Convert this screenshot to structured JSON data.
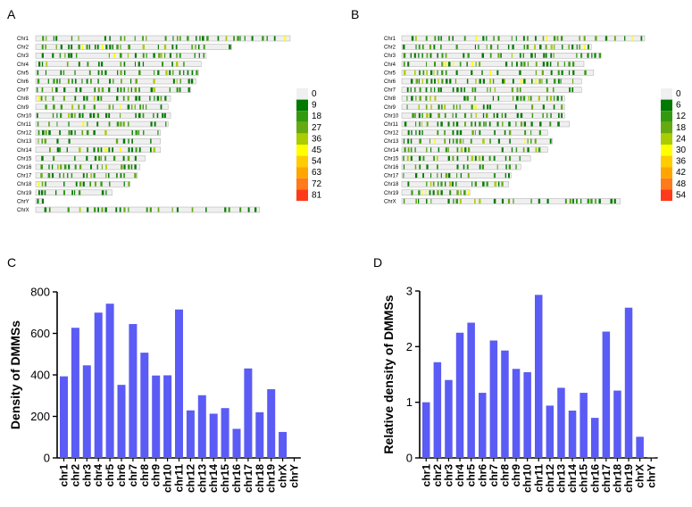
{
  "panel_labels": {
    "a": "A",
    "b": "B",
    "c": "C",
    "d": "D"
  },
  "colors": {
    "bar": "#5b5bf5",
    "chrom_bg": "#efefef",
    "chrom_border": "#9a9a9a",
    "scale_a": [
      "#f0f0f0",
      "#007a00",
      "#339a10",
      "#66aa10",
      "#aacc00",
      "#ffff00",
      "#ffcc00",
      "#ffa500",
      "#ff7a1a",
      "#ff3a1a"
    ],
    "scale_b": [
      "#f0f0f0",
      "#007a00",
      "#339a10",
      "#66aa10",
      "#aacc00",
      "#ffff00",
      "#ffcc00",
      "#ffa500",
      "#ff7a1a",
      "#ff3a1a"
    ]
  },
  "ideogram_a": {
    "chromosomes": [
      "Chr1",
      "Chr2",
      "Chr3",
      "Chr4",
      "Chr5",
      "Chr6",
      "Chr7",
      "Chr8",
      "Chr9",
      "Chr10",
      "Chr11",
      "Chr12",
      "Chr13",
      "Chr14",
      "Chr15",
      "Chr16",
      "Chr17",
      "Chr18",
      "Chr19",
      "ChrY",
      "ChrX"
    ],
    "relative_lengths": [
      1.0,
      0.77,
      0.67,
      0.65,
      0.64,
      0.63,
      0.61,
      0.53,
      0.52,
      0.53,
      0.52,
      0.49,
      0.49,
      0.49,
      0.43,
      0.41,
      0.4,
      0.37,
      0.3,
      0.03,
      0.88
    ],
    "legend": [
      "0",
      "9",
      "18",
      "27",
      "36",
      "45",
      "54",
      "63",
      "72",
      "81"
    ]
  },
  "ideogram_b": {
    "chromosomes": [
      "Chr1",
      "Chr2",
      "Chr3",
      "Chr4",
      "Chr5",
      "Chr6",
      "Chr7",
      "Chr8",
      "Chr9",
      "Chr10",
      "Chr11",
      "Chr12",
      "Chr13",
      "Chr14",
      "Chr15",
      "Chr16",
      "Chr17",
      "Chr18",
      "Chr19",
      "ChrX"
    ],
    "relative_lengths": [
      1.0,
      0.78,
      0.82,
      0.75,
      0.79,
      0.74,
      0.74,
      0.67,
      0.67,
      0.67,
      0.69,
      0.6,
      0.62,
      0.6,
      0.53,
      0.49,
      0.45,
      0.44,
      0.28,
      0.9
    ],
    "legend": [
      "0",
      "6",
      "12",
      "18",
      "24",
      "30",
      "36",
      "42",
      "48",
      "54"
    ]
  },
  "chart_data": [
    {
      "type": "bar",
      "categories": [
        "chr1",
        "chr2",
        "chr3",
        "chr4",
        "chr5",
        "chr6",
        "chr7",
        "chr8",
        "chr9",
        "chr10",
        "chr11",
        "chr12",
        "chr13",
        "chr14",
        "chr15",
        "chr16",
        "chr17",
        "chr18",
        "chr19",
        "chrX",
        "chrY"
      ],
      "values": [
        393,
        627,
        446,
        700,
        743,
        352,
        645,
        507,
        397,
        398,
        715,
        229,
        302,
        213,
        240,
        140,
        431,
        220,
        331,
        125,
        0
      ],
      "title": "",
      "xlabel": "",
      "ylabel": "Density of DMMSs",
      "ylim": [
        0,
        800
      ],
      "yticks": [
        0,
        200,
        400,
        600,
        800
      ],
      "ytick_labels": [
        "0",
        "200",
        "400",
        "600",
        "800"
      ]
    },
    {
      "type": "bar",
      "categories": [
        "chr1",
        "chr2",
        "chr3",
        "chr4",
        "chr5",
        "chr6",
        "chr7",
        "chr8",
        "chr9",
        "chr10",
        "chr11",
        "chr12",
        "chr13",
        "chr14",
        "chr15",
        "chr16",
        "chr17",
        "chr18",
        "chr19",
        "chrX",
        "chrY"
      ],
      "values": [
        1.0,
        1.72,
        1.4,
        2.25,
        2.43,
        1.17,
        2.11,
        1.93,
        1.6,
        1.54,
        2.93,
        0.94,
        1.26,
        0.85,
        1.17,
        0.72,
        2.27,
        1.21,
        2.7,
        0.38,
        0.01
      ],
      "title": "",
      "xlabel": "",
      "ylabel": "Relative density of DMMSs",
      "ylim": [
        0,
        3
      ],
      "yticks": [
        0,
        1,
        2,
        3
      ],
      "ytick_labels": [
        "0",
        "1",
        "2",
        "3"
      ]
    }
  ]
}
